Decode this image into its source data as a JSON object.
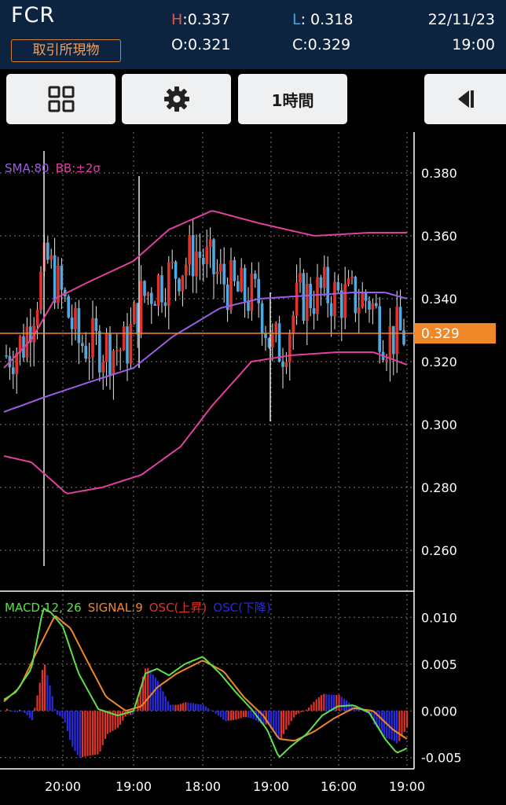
{
  "header": {
    "symbol": "FCR",
    "exchange_label": "取引所現物",
    "high_key": "H",
    "high_value": ":0.337",
    "low_key": "L",
    "low_value": ": 0.318",
    "open_text": "O:0.321",
    "close_text": "C:0.329",
    "date": "22/11/23",
    "time": "19:00"
  },
  "toolbar": {
    "grid_icon": "grid-icon",
    "settings_icon": "gear-icon",
    "timeframe_label": "1時間",
    "collapse_icon": "collapse-left-icon"
  },
  "colors": {
    "up": "#e0332a",
    "down": "#4fa9e0",
    "sma": "#9b5de5",
    "bb": "#e040a0",
    "price_line": "#f0882a",
    "macd": "#5fe04a",
    "signal": "#f0882a",
    "osc_up": "#e0332a",
    "osc_down": "#2a2ae0"
  },
  "chart_data": [
    {
      "type": "candlestick",
      "legend_sma": "SMA:80",
      "legend_bb": "BB:±2σ",
      "y_ticks": [
        "0.380",
        "0.360",
        "0.340",
        "0.320",
        "0.300",
        "0.280",
        "0.260"
      ],
      "y_range": [
        0.247,
        0.393
      ],
      "current_price": 0.329,
      "current_price_label": "0.329",
      "x_labels": [
        "20:00",
        "19:00",
        "18:00",
        "19:00",
        "16:00",
        "19:00"
      ],
      "grid": true
    },
    {
      "type": "line",
      "legend_macd": "MACD:12, 26",
      "legend_signal": "SIGNAL:9",
      "legend_osc_up": "OSC(上昇)",
      "legend_osc_down": "OSC(下降)",
      "y_ticks": [
        "0.010",
        "0.005",
        "0.000",
        "-0.005"
      ],
      "y_range": [
        -0.0062,
        0.0128
      ],
      "grid": true
    }
  ]
}
